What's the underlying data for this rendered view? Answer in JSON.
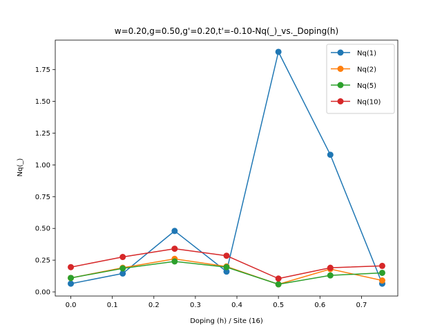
{
  "chart_data": {
    "type": "line",
    "title": "w=0.20,g=0.50,g'=0.20,t'=-0.10-Nq(_)_vs._Doping(h)",
    "xlabel": "Doping (h) / Site (16)",
    "ylabel": "Nq(_)",
    "xlim": [
      -0.0375,
      0.7875
    ],
    "ylim": [
      -0.0325,
      1.9825
    ],
    "xticks": [
      0.0,
      0.1,
      0.2,
      0.3,
      0.4,
      0.5,
      0.6,
      0.7
    ],
    "xtick_labels": [
      "0.0",
      "0.1",
      "0.2",
      "0.3",
      "0.4",
      "0.5",
      "0.6",
      "0.7"
    ],
    "yticks": [
      0.0,
      0.25,
      0.5,
      0.75,
      1.0,
      1.25,
      1.5,
      1.75
    ],
    "ytick_labels": [
      "0.00",
      "0.25",
      "0.50",
      "0.75",
      "1.00",
      "1.25",
      "1.50",
      "1.75"
    ],
    "grid": false,
    "legend_position": "top-right",
    "x": [
      0.0,
      0.125,
      0.25,
      0.375,
      0.5,
      0.625,
      0.75
    ],
    "series": [
      {
        "name": "Nq(1)",
        "color": "#1f77b4",
        "values": [
          0.065,
          0.145,
          0.48,
          0.16,
          1.89,
          1.08,
          0.065
        ]
      },
      {
        "name": "Nq(2)",
        "color": "#ff7f0e",
        "values": [
          0.11,
          0.19,
          0.26,
          0.2,
          0.06,
          0.18,
          0.09
        ]
      },
      {
        "name": "Nq(5)",
        "color": "#2ca02c",
        "values": [
          0.11,
          0.185,
          0.24,
          0.195,
          0.06,
          0.13,
          0.15
        ]
      },
      {
        "name": "Nq(10)",
        "color": "#d62728",
        "values": [
          0.195,
          0.275,
          0.34,
          0.285,
          0.105,
          0.19,
          0.205
        ]
      }
    ]
  }
}
